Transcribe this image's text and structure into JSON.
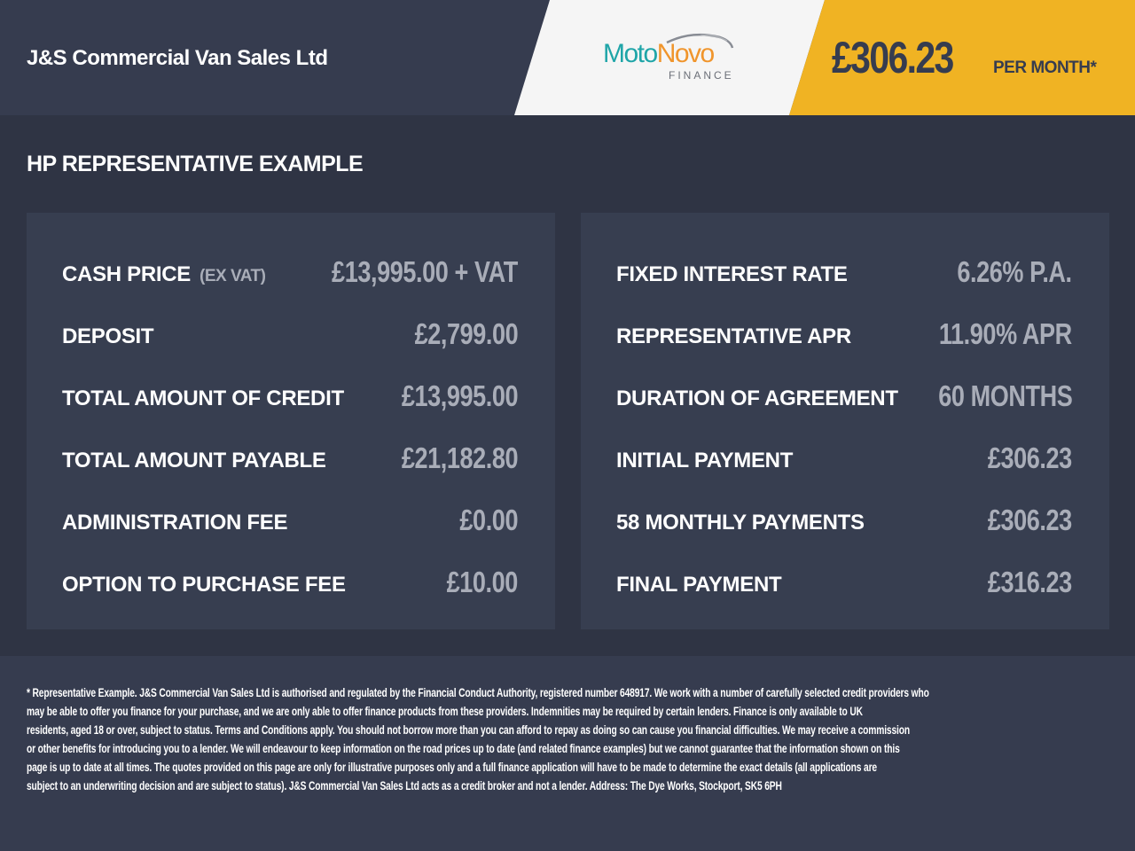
{
  "header": {
    "dealer": "J&S Commercial Van Sales Ltd",
    "logo": {
      "text1": "Moto",
      "text2": "Novo",
      "sub": "FINANCE"
    },
    "monthly_price": "£306.23",
    "per_month": "PER MONTH*"
  },
  "colors": {
    "accent": "#f0b323",
    "background": "#2f3444",
    "panel": "#373e50"
  },
  "section_title": "HP REPRESENTATIVE EXAMPLE",
  "left": [
    {
      "label": "CASH PRICE",
      "note": "(EX VAT)",
      "value": "£13,995.00 + VAT"
    },
    {
      "label": "DEPOSIT",
      "value": "£2,799.00"
    },
    {
      "label": "TOTAL AMOUNT OF CREDIT",
      "value": "£13,995.00"
    },
    {
      "label": "TOTAL AMOUNT PAYABLE",
      "value": "£21,182.80"
    },
    {
      "label": "ADMINISTRATION FEE",
      "value": "£0.00"
    },
    {
      "label": "OPTION TO PURCHASE FEE",
      "value": "£10.00"
    }
  ],
  "right": [
    {
      "label": "FIXED INTEREST RATE",
      "value": "6.26% P.A."
    },
    {
      "label": "REPRESENTATIVE APR",
      "value": "11.90% APR"
    },
    {
      "label": "DURATION OF AGREEMENT",
      "value": "60 MONTHS"
    },
    {
      "label": "INITIAL PAYMENT",
      "value": "£306.23"
    },
    {
      "label": "58 MONTHLY PAYMENTS",
      "value": "£306.23"
    },
    {
      "label": "FINAL PAYMENT",
      "value": "£316.23"
    }
  ],
  "footer_lines": [
    "* Representative Example. J&S Commercial Van Sales Ltd is authorised and regulated by the Financial Conduct Authority, registered number 648917. We work with a number of carefully selected credit providers who",
    "may be able to offer you finance for your purchase, and we are only able to offer finance products from these providers. Indemnities may be required by certain lenders. Finance is only available to UK",
    "residents, aged 18 or over, subject to status. Terms and Conditions apply. You should not borrow more than you can afford to repay as doing so can cause you financial difficulties. We may receive a commission",
    "or other benefits for introducing you to a lender. We will endeavour to keep information on the road prices up to date (and related finance examples) but we cannot guarantee that the information shown on this",
    "page is up to date at all times. The quotes provided on this page are only for illustrative purposes only and a full finance application will have to be made to determine the exact details (all applications are",
    "subject to an underwriting decision and are subject to status). J&S Commercial Van Sales Ltd acts as a credit broker and not a lender. Address: The Dye Works, Stockport, SK5 6PH"
  ]
}
